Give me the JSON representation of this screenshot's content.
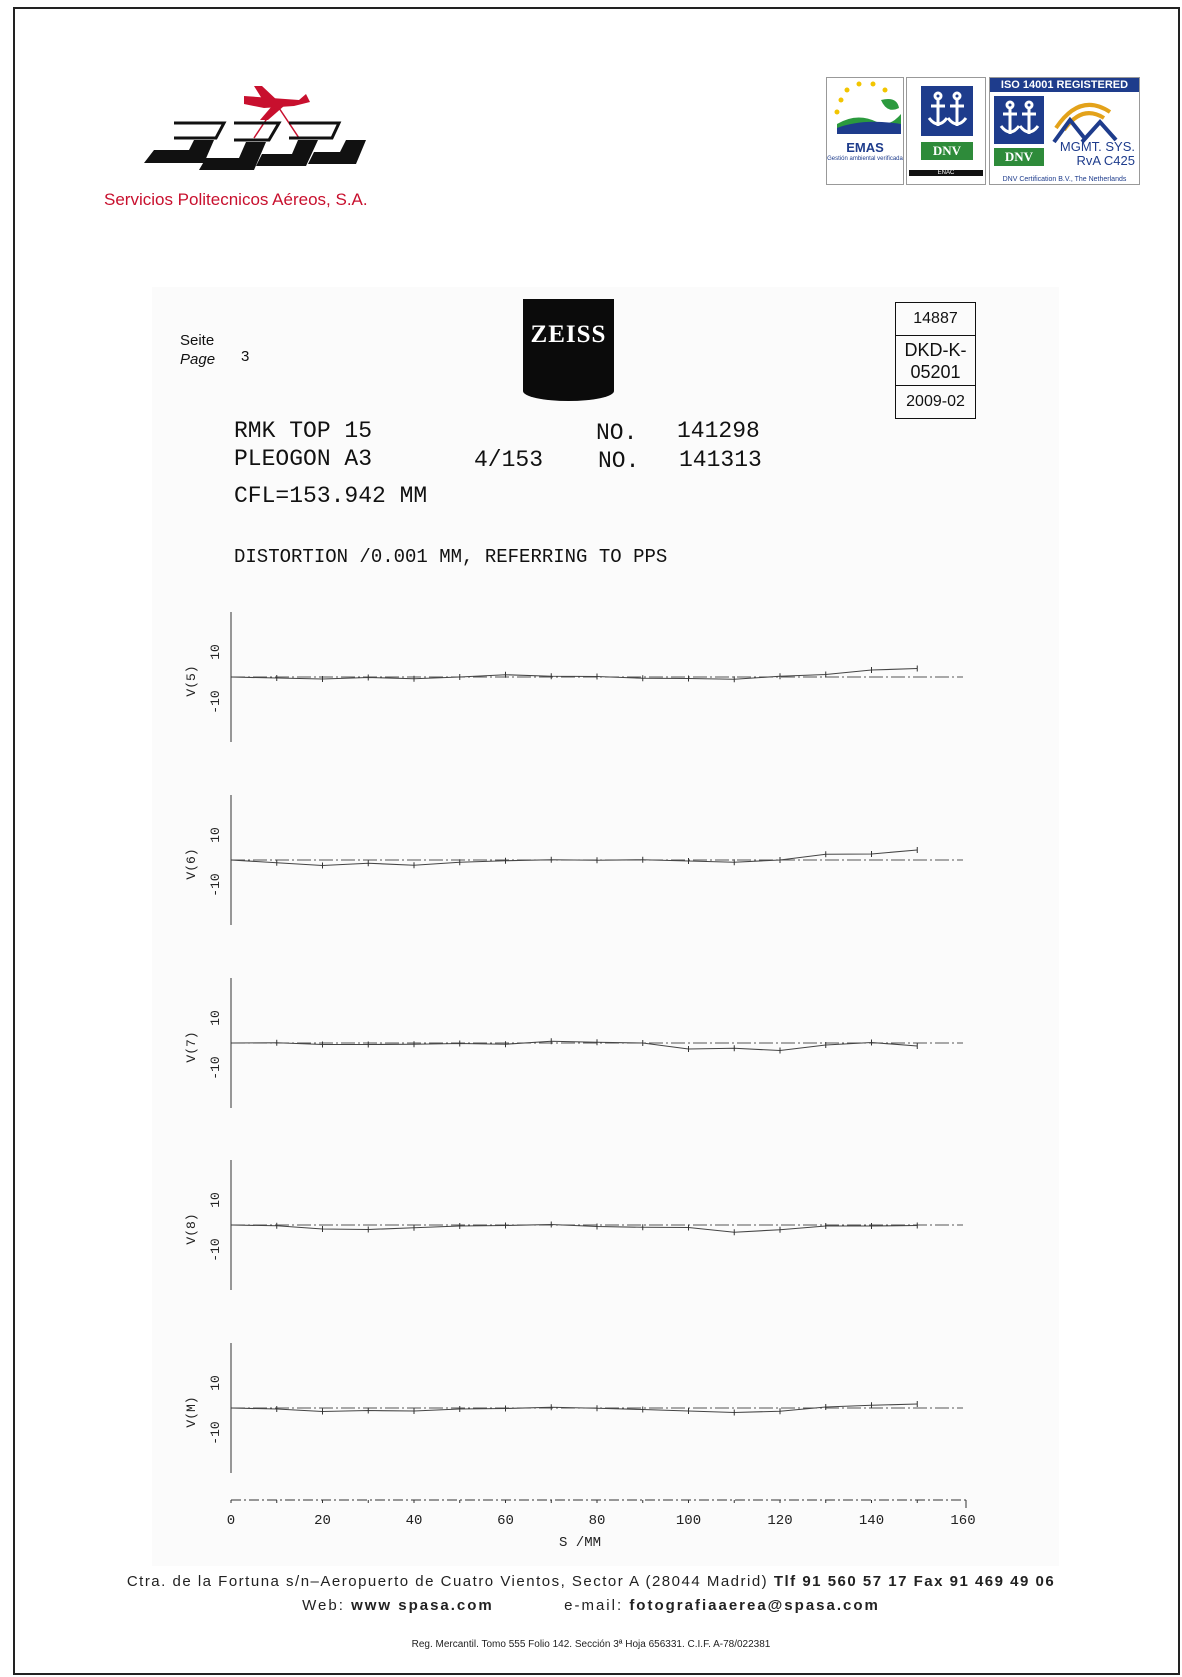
{
  "header": {
    "company_name": "Servicios Politecnicos Aéreos, S.A.",
    "cert_emas": {
      "label": "EMAS",
      "sub": "Gestión ambiental verificada"
    },
    "cert_dnv1": {
      "badge": "DNV",
      "enac": "ENAC"
    },
    "cert_dnv2": {
      "title": "ISO 14001 REGISTERED",
      "badge": "DNV",
      "mgmt_line1": "MGMT. SYS.",
      "mgmt_line2": "RvA C425",
      "foot": "DNV Certification B.V., The Netherlands"
    }
  },
  "document": {
    "page_label_de": "Seite",
    "page_label_en": "Page",
    "page_number": "3",
    "brand": "ZEISS",
    "cert_box": [
      "14887",
      "DKD-K-\n05201",
      "2009-02"
    ],
    "camera_line": "RMK TOP 15",
    "camera_no_label": "NO.",
    "camera_no": "141298",
    "lens_line": "PLEOGON A3",
    "lens_spec": "4/153",
    "lens_no_label": "NO.",
    "lens_no": "141313",
    "cfl": "CFL=153.942 MM",
    "distortion_title": "DISTORTION /0.001 MM, REFERRING TO PPS"
  },
  "chart_data": {
    "type": "line",
    "title": "DISTORTION /0.001 MM, REFERRING TO PPS",
    "xlabel": "S /MM",
    "xlim": [
      0,
      160
    ],
    "x_ticks": [
      0,
      20,
      40,
      60,
      80,
      100,
      120,
      140,
      160
    ],
    "x": [
      0,
      10,
      20,
      30,
      40,
      50,
      60,
      70,
      80,
      90,
      100,
      110,
      120,
      130,
      140,
      150
    ],
    "ylim": [
      -15,
      15
    ],
    "y_ticks": [
      10,
      -10
    ],
    "panels": [
      {
        "ylabel": "V(5)",
        "values": [
          0,
          -0.4,
          -0.8,
          -0.2,
          -0.7,
          0,
          0.9,
          0.3,
          0.2,
          -0.5,
          -0.6,
          -0.9,
          0.3,
          1.0,
          2.8,
          3.4
        ],
        "reference": [
          0,
          0,
          0,
          0,
          0,
          0,
          0,
          0,
          0,
          0,
          0,
          0,
          0,
          0,
          0,
          0
        ]
      },
      {
        "ylabel": "V(6)",
        "values": [
          0,
          -1.1,
          -2.2,
          -1.3,
          -2.1,
          -0.9,
          -0.3,
          0.1,
          -0.1,
          0.1,
          -0.4,
          -0.9,
          0,
          2.3,
          2.4,
          4.0
        ],
        "reference": [
          0,
          0,
          0,
          0,
          0,
          0,
          0,
          0,
          0,
          0,
          0,
          0,
          0,
          0,
          0,
          0
        ]
      },
      {
        "ylabel": "V(7)",
        "values": [
          0,
          0.1,
          -0.6,
          -0.6,
          -0.5,
          -0.2,
          -0.5,
          0.7,
          0.3,
          0,
          -2.4,
          -2.1,
          -3.0,
          -0.8,
          0.2,
          -1.2
        ],
        "reference": [
          0,
          0,
          0,
          0,
          0,
          0,
          0,
          0,
          0,
          0,
          0,
          0,
          0,
          0,
          0,
          0
        ]
      },
      {
        "ylabel": "V(8)",
        "values": [
          0,
          -0.3,
          -1.6,
          -1.8,
          -1.1,
          -0.4,
          -0.2,
          0.2,
          -0.6,
          -0.9,
          -1.0,
          -2.9,
          -1.9,
          -0.4,
          -0.4,
          -0.2
        ],
        "reference": [
          0,
          0,
          0,
          0,
          0,
          0,
          0,
          0,
          0,
          0,
          0,
          0,
          0,
          0,
          0,
          0
        ]
      },
      {
        "ylabel": "V(M)",
        "values": [
          0,
          -0.4,
          -1.4,
          -1.0,
          -1.2,
          -0.4,
          -0.2,
          0.3,
          -0.1,
          -0.6,
          -1.2,
          -1.8,
          -1.3,
          0.4,
          1.1,
          1.6
        ],
        "reference": [
          0,
          0,
          0,
          0,
          0,
          0,
          0,
          0,
          0,
          0,
          0,
          0,
          0,
          0,
          0,
          0
        ]
      }
    ]
  },
  "footer": {
    "address": "Ctra. de la Fortuna s/n–Aeropuerto de Cuatro Vientos, Sector A (28044 Madrid)",
    "phones": "Tlf 91 560 57 17 Fax 91 469 49 06",
    "web_label": "Web:",
    "web": "www spasa.com",
    "email_label": "e-mail:",
    "email": "fotografiaaerea@spasa.com",
    "registry": "Reg. Mercantil. Tomo 555 Folio 142. Sección 3ª Hoja 656331. C.I.F. A-78/022381"
  }
}
